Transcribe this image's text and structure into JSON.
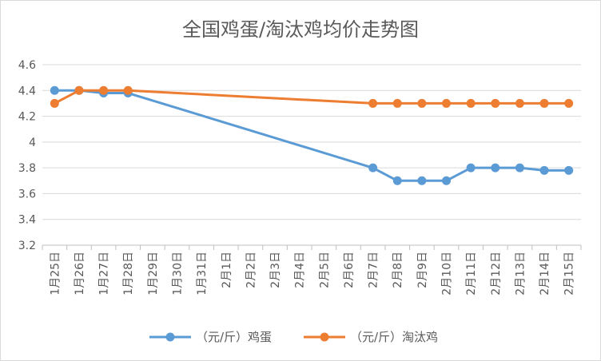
{
  "chart_data": {
    "type": "line",
    "title": "全国鸡蛋/淘汰鸡均价走势图",
    "xlabel": "",
    "ylabel": "",
    "categories": [
      "1月25日",
      "1月26日",
      "1月27日",
      "1月28日",
      "1月29日",
      "1月30日",
      "1月31日",
      "2月1日",
      "2月2日",
      "2月3日",
      "2月4日",
      "2月5日",
      "2月6日",
      "2月7日",
      "2月8日",
      "2月9日",
      "2月10日",
      "2月11日",
      "2月12日",
      "2月13日",
      "2月14日",
      "2月15日"
    ],
    "ylim": [
      3.2,
      4.6
    ],
    "yticks": [
      "3.2",
      "3.4",
      "3.6",
      "3.8",
      "4",
      "4.2",
      "4.4",
      "4.6"
    ],
    "grid": true,
    "legend_position": "bottom",
    "series": [
      {
        "name": "（元/斤）鸡蛋",
        "color": "#5B9BD5",
        "values": [
          4.4,
          4.4,
          4.38,
          4.38,
          null,
          null,
          null,
          null,
          null,
          null,
          null,
          null,
          null,
          3.8,
          3.7,
          3.7,
          3.7,
          3.8,
          3.8,
          3.8,
          3.78,
          3.78
        ]
      },
      {
        "name": "（元/斤）淘汰鸡",
        "color": "#ED7D31",
        "values": [
          4.3,
          4.4,
          4.4,
          4.4,
          null,
          null,
          null,
          null,
          null,
          null,
          null,
          null,
          null,
          4.3,
          4.3,
          4.3,
          4.3,
          4.3,
          4.3,
          4.3,
          4.3,
          4.3
        ]
      }
    ]
  }
}
